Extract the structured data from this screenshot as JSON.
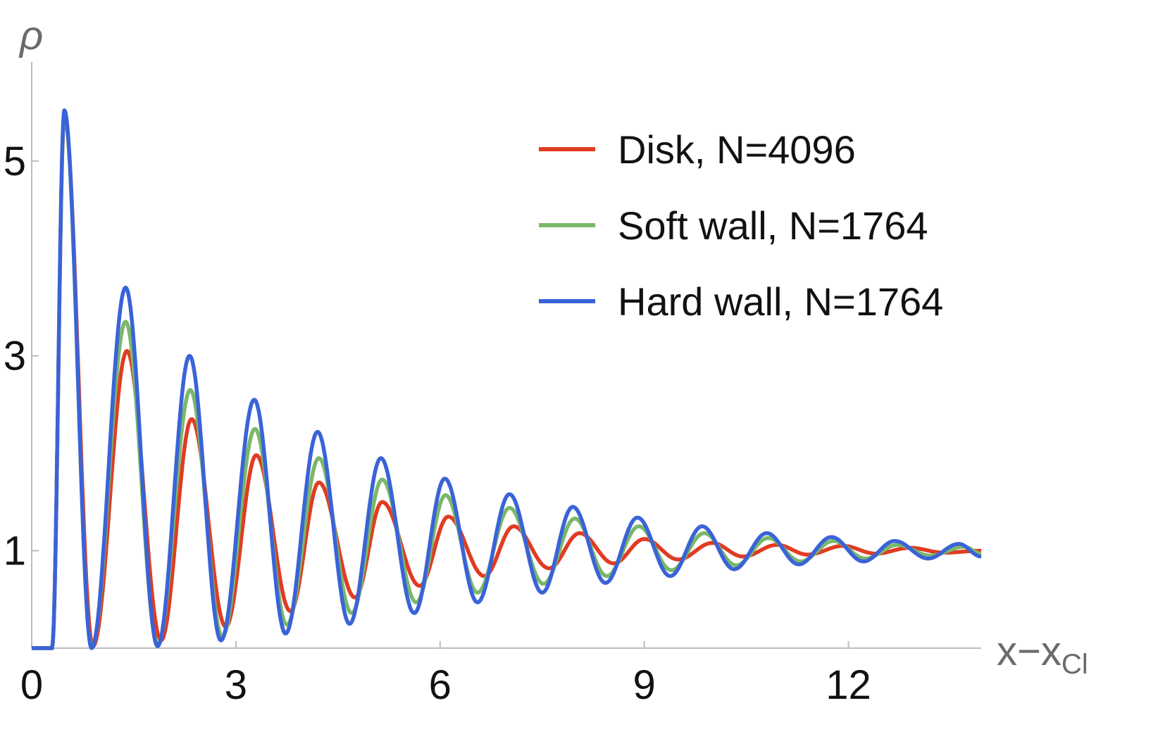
{
  "chart_data": {
    "type": "line",
    "title": "",
    "xlabel": "x−x",
    "xlabel_sub": "Cl",
    "ylabel": "ρ",
    "xlim": [
      0,
      13.95
    ],
    "ylim": [
      0,
      5.8
    ],
    "xticks": [
      0,
      3,
      6,
      9,
      12
    ],
    "yticks": [
      1,
      3,
      5
    ],
    "grid": false,
    "legend_position": "top-right",
    "series": [
      {
        "name": "Disk, N=4096",
        "color": "#e03c22",
        "peaks": [
          [
            0.48,
            5.45
          ],
          [
            1.4,
            3.05
          ],
          [
            2.35,
            2.35
          ],
          [
            3.3,
            1.98
          ],
          [
            4.22,
            1.7
          ],
          [
            5.15,
            1.5
          ],
          [
            6.12,
            1.35
          ],
          [
            7.08,
            1.25
          ],
          [
            8.05,
            1.18
          ],
          [
            9.0,
            1.12
          ],
          [
            10.0,
            1.08
          ],
          [
            10.95,
            1.06
          ],
          [
            11.92,
            1.05
          ],
          [
            12.9,
            1.03
          ],
          [
            13.95,
            1.0
          ]
        ],
        "troughs": [
          [
            0.9,
            0.02
          ],
          [
            1.9,
            0.08
          ],
          [
            2.85,
            0.22
          ],
          [
            3.8,
            0.38
          ],
          [
            4.75,
            0.52
          ],
          [
            5.7,
            0.64
          ],
          [
            6.65,
            0.74
          ],
          [
            7.6,
            0.82
          ],
          [
            8.55,
            0.87
          ],
          [
            9.5,
            0.91
          ],
          [
            10.45,
            0.94
          ],
          [
            11.4,
            0.96
          ],
          [
            12.4,
            0.97
          ],
          [
            13.4,
            0.98
          ]
        ]
      },
      {
        "name": "Soft wall, N=1764",
        "color": "#7ab86a",
        "peaks": [
          [
            0.48,
            5.48
          ],
          [
            1.38,
            3.35
          ],
          [
            2.33,
            2.65
          ],
          [
            3.28,
            2.25
          ],
          [
            4.22,
            1.95
          ],
          [
            5.15,
            1.73
          ],
          [
            6.08,
            1.57
          ],
          [
            7.02,
            1.44
          ],
          [
            7.98,
            1.33
          ],
          [
            8.92,
            1.25
          ],
          [
            9.88,
            1.18
          ],
          [
            10.82,
            1.13
          ],
          [
            11.78,
            1.1
          ],
          [
            12.72,
            1.06
          ],
          [
            13.7,
            1.04
          ]
        ],
        "troughs": [
          [
            0.88,
            0.01
          ],
          [
            1.85,
            0.04
          ],
          [
            2.8,
            0.12
          ],
          [
            3.75,
            0.24
          ],
          [
            4.7,
            0.36
          ],
          [
            5.65,
            0.47
          ],
          [
            6.55,
            0.57
          ],
          [
            7.52,
            0.66
          ],
          [
            8.45,
            0.74
          ],
          [
            9.4,
            0.8
          ],
          [
            10.35,
            0.85
          ],
          [
            11.3,
            0.89
          ],
          [
            12.25,
            0.92
          ],
          [
            13.2,
            0.95
          ],
          [
            13.95,
            0.97
          ]
        ]
      },
      {
        "name": "Hard wall, N=1764",
        "color": "#3a63d8",
        "peaks": [
          [
            0.48,
            5.52
          ],
          [
            1.38,
            3.7
          ],
          [
            2.32,
            3.0
          ],
          [
            3.27,
            2.55
          ],
          [
            4.2,
            2.22
          ],
          [
            5.13,
            1.95
          ],
          [
            6.07,
            1.74
          ],
          [
            7.02,
            1.58
          ],
          [
            7.95,
            1.45
          ],
          [
            8.9,
            1.34
          ],
          [
            9.85,
            1.25
          ],
          [
            10.8,
            1.18
          ],
          [
            11.75,
            1.14
          ],
          [
            12.68,
            1.1
          ],
          [
            13.62,
            1.07
          ]
        ],
        "troughs": [
          [
            0.88,
            0.0
          ],
          [
            1.85,
            0.02
          ],
          [
            2.78,
            0.08
          ],
          [
            3.73,
            0.15
          ],
          [
            4.67,
            0.25
          ],
          [
            5.62,
            0.36
          ],
          [
            6.55,
            0.47
          ],
          [
            7.5,
            0.57
          ],
          [
            8.43,
            0.67
          ],
          [
            9.38,
            0.74
          ],
          [
            10.32,
            0.81
          ],
          [
            11.27,
            0.86
          ],
          [
            12.22,
            0.89
          ],
          [
            13.17,
            0.92
          ],
          [
            13.95,
            0.94
          ]
        ]
      }
    ]
  }
}
